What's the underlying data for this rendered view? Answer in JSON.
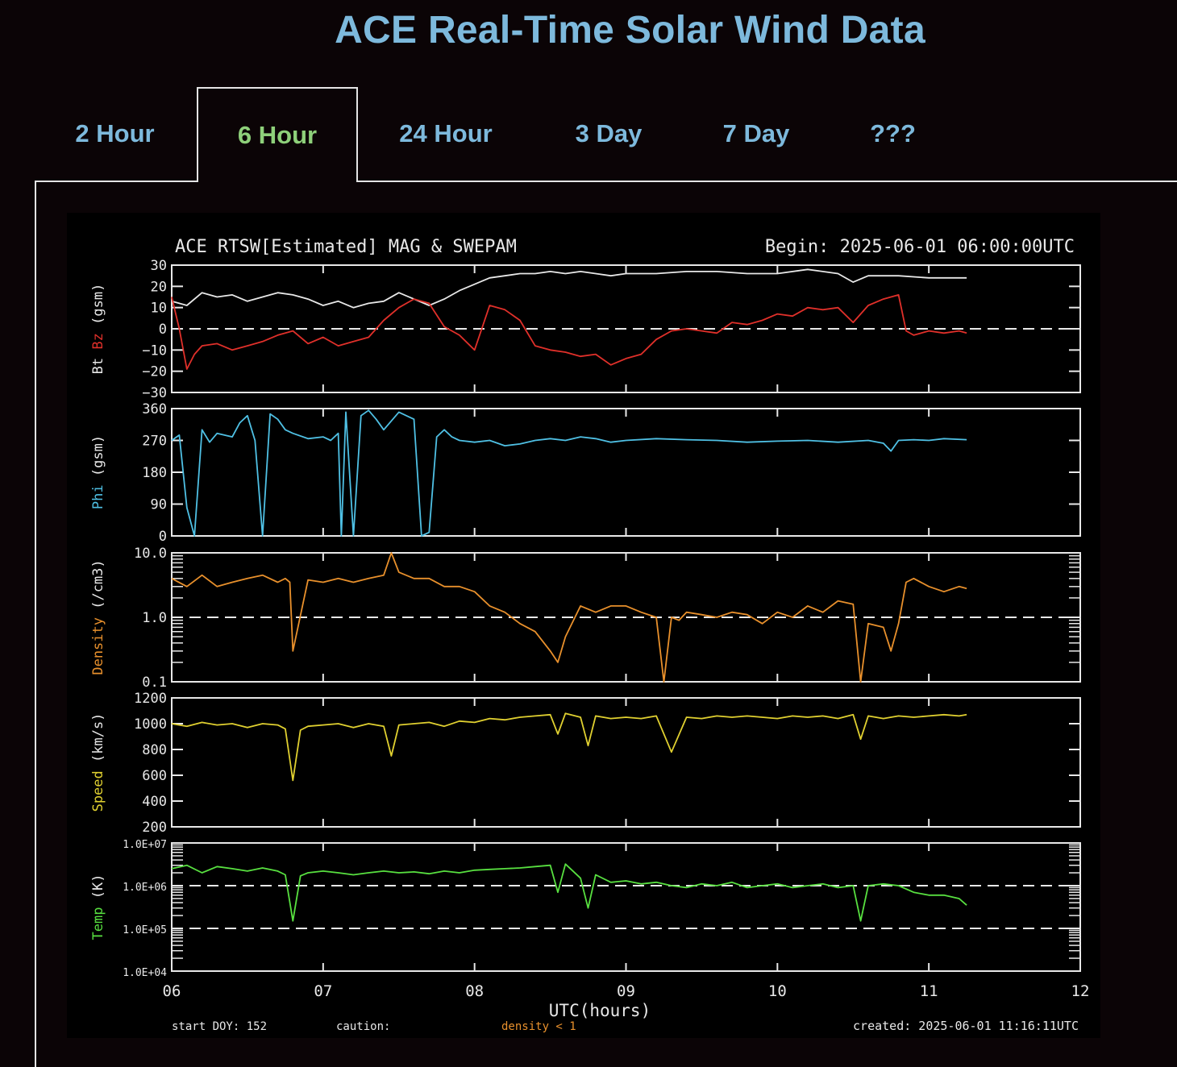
{
  "page": {
    "title": "ACE Real-Time Solar Wind Data"
  },
  "tabs": [
    {
      "label": "2 Hour",
      "active": false
    },
    {
      "label": "6 Hour",
      "active": true
    },
    {
      "label": "24 Hour",
      "active": false
    },
    {
      "label": "3 Day",
      "active": false
    },
    {
      "label": "7 Day",
      "active": false
    },
    {
      "label": "???",
      "active": false
    }
  ],
  "colors": {
    "page_bg": "#0b0406",
    "title": "#7db9dc",
    "tab_active": "#8ed07a",
    "bt": "#e8e8e8",
    "bz": "#e0302a",
    "phi": "#4fc0e4",
    "density": "#e8902c",
    "speed": "#e0d030",
    "temp": "#58e040"
  },
  "chart_data": {
    "type": "line",
    "title": "ACE RTSW[Estimated] MAG & SWEPAM",
    "begin_label": "Begin: 2025-06-01 06:00:00UTC",
    "xlabel": "UTC(hours)",
    "xlim": [
      6,
      12
    ],
    "xticks": [
      "06",
      "07",
      "08",
      "09",
      "10",
      "11",
      "12"
    ],
    "footer": {
      "start": "start DOY: 152",
      "caution": "caution:",
      "density_note": "density < 1",
      "created": "created: 2025-06-01 11:16:11UTC"
    },
    "panels": [
      {
        "id": "mag",
        "ylabel_parts": [
          {
            "text": "Bt",
            "color": "bt"
          },
          {
            "text": "Bz",
            "color": "bz"
          },
          {
            "text": "(gsm)",
            "color": "bt"
          }
        ],
        "scale": "linear",
        "ylim": [
          -30,
          30
        ],
        "ytick_labels": [
          "30",
          "20",
          "10",
          "0",
          "−10",
          "−20",
          "−30"
        ],
        "dashed": [
          0
        ],
        "series": [
          {
            "name": "Bt",
            "color": "bt",
            "x": [
              6.0,
              6.1,
              6.2,
              6.3,
              6.4,
              6.5,
              6.6,
              6.7,
              6.8,
              6.9,
              7.0,
              7.1,
              7.2,
              7.3,
              7.4,
              7.5,
              7.6,
              7.7,
              7.8,
              7.9,
              8.0,
              8.1,
              8.2,
              8.3,
              8.4,
              8.5,
              8.6,
              8.7,
              8.8,
              8.9,
              9.0,
              9.2,
              9.4,
              9.6,
              9.8,
              10.0,
              10.2,
              10.4,
              10.5,
              10.6,
              10.8,
              11.0,
              11.2,
              11.25
            ],
            "y": [
              13,
              11,
              17,
              15,
              16,
              13,
              15,
              17,
              16,
              14,
              11,
              13,
              10,
              12,
              13,
              17,
              14,
              11,
              14,
              18,
              21,
              24,
              25,
              26,
              26,
              27,
              26,
              27,
              26,
              25,
              26,
              26,
              27,
              27,
              26,
              26,
              28,
              26,
              22,
              25,
              25,
              24,
              24,
              24
            ]
          },
          {
            "name": "Bz",
            "color": "bz",
            "x": [
              6.0,
              6.05,
              6.1,
              6.15,
              6.2,
              6.3,
              6.4,
              6.5,
              6.6,
              6.7,
              6.8,
              6.9,
              7.0,
              7.1,
              7.2,
              7.3,
              7.4,
              7.5,
              7.6,
              7.7,
              7.8,
              7.9,
              8.0,
              8.1,
              8.2,
              8.3,
              8.4,
              8.5,
              8.6,
              8.7,
              8.8,
              8.9,
              9.0,
              9.1,
              9.2,
              9.3,
              9.4,
              9.5,
              9.6,
              9.7,
              9.8,
              9.9,
              10.0,
              10.1,
              10.2,
              10.3,
              10.4,
              10.5,
              10.6,
              10.7,
              10.8,
              10.85,
              10.9,
              11.0,
              11.1,
              11.2,
              11.25
            ],
            "y": [
              15,
              0,
              -19,
              -12,
              -8,
              -7,
              -10,
              -8,
              -6,
              -3,
              -1,
              -7,
              -4,
              -8,
              -6,
              -4,
              4,
              10,
              14,
              12,
              1,
              -3,
              -10,
              11,
              9,
              4,
              -8,
              -10,
              -11,
              -13,
              -12,
              -17,
              -14,
              -12,
              -5,
              -1,
              0,
              -1,
              -2,
              3,
              2,
              4,
              7,
              6,
              10,
              9,
              10,
              3,
              11,
              14,
              16,
              -1,
              -3,
              -1,
              -2,
              -1,
              -2
            ]
          }
        ]
      },
      {
        "id": "phi",
        "ylabel_parts": [
          {
            "text": "Phi",
            "color": "phi"
          },
          {
            "text": "(gsm)",
            "color": "bt"
          }
        ],
        "scale": "linear",
        "ylim": [
          0,
          360
        ],
        "ytick_labels": [
          "360",
          "270",
          "180",
          "90",
          "0"
        ],
        "ytick_values": [
          360,
          270,
          180,
          90,
          0
        ],
        "dashed": [],
        "series": [
          {
            "name": "Phi",
            "color": "phi",
            "x": [
              6.0,
              6.05,
              6.1,
              6.15,
              6.2,
              6.25,
              6.3,
              6.4,
              6.45,
              6.5,
              6.55,
              6.6,
              6.65,
              6.7,
              6.75,
              6.8,
              6.9,
              7.0,
              7.05,
              7.1,
              7.12,
              7.15,
              7.2,
              7.25,
              7.3,
              7.35,
              7.4,
              7.5,
              7.55,
              7.6,
              7.65,
              7.7,
              7.75,
              7.8,
              7.85,
              7.9,
              8.0,
              8.1,
              8.2,
              8.3,
              8.4,
              8.5,
              8.6,
              8.7,
              8.8,
              8.9,
              9.0,
              9.2,
              9.4,
              9.6,
              9.8,
              10.0,
              10.2,
              10.4,
              10.6,
              10.7,
              10.75,
              10.8,
              10.9,
              11.0,
              11.1,
              11.25
            ],
            "y": [
              270,
              285,
              80,
              0,
              300,
              265,
              290,
              280,
              320,
              340,
              270,
              0,
              345,
              330,
              300,
              290,
              275,
              280,
              270,
              290,
              0,
              350,
              0,
              340,
              355,
              330,
              300,
              350,
              340,
              330,
              0,
              10,
              280,
              300,
              280,
              270,
              265,
              270,
              255,
              260,
              270,
              275,
              270,
              280,
              275,
              265,
              270,
              275,
              272,
              270,
              265,
              268,
              270,
              265,
              270,
              262,
              240,
              270,
              272,
              270,
              275,
              272
            ]
          }
        ]
      },
      {
        "id": "density",
        "ylabel_parts": [
          {
            "text": "Density",
            "color": "density"
          },
          {
            "text": "(/cm3)",
            "color": "bt"
          }
        ],
        "scale": "log",
        "ylim": [
          0.1,
          10
        ],
        "ytick_labels": [
          "10.0",
          "1.0",
          "0.1"
        ],
        "ytick_values": [
          10,
          1,
          0.1
        ],
        "dashed": [
          1
        ],
        "series": [
          {
            "name": "Density",
            "color": "density",
            "x": [
              6.0,
              6.1,
              6.2,
              6.3,
              6.4,
              6.5,
              6.6,
              6.7,
              6.75,
              6.78,
              6.8,
              6.9,
              7.0,
              7.1,
              7.2,
              7.3,
              7.4,
              7.45,
              7.5,
              7.6,
              7.7,
              7.8,
              7.9,
              8.0,
              8.1,
              8.2,
              8.3,
              8.4,
              8.5,
              8.55,
              8.6,
              8.7,
              8.8,
              8.9,
              9.0,
              9.1,
              9.2,
              9.25,
              9.3,
              9.35,
              9.4,
              9.5,
              9.6,
              9.7,
              9.8,
              9.9,
              10.0,
              10.1,
              10.2,
              10.3,
              10.4,
              10.5,
              10.55,
              10.6,
              10.7,
              10.75,
              10.8,
              10.85,
              10.9,
              11.0,
              11.1,
              11.2,
              11.25
            ],
            "y": [
              4,
              3,
              4.5,
              3,
              3.5,
              4,
              4.5,
              3.5,
              4,
              3.5,
              0.3,
              3.8,
              3.5,
              4,
              3.5,
              4,
              4.5,
              10,
              5,
              4,
              4,
              3,
              3,
              2.5,
              1.5,
              1.2,
              0.8,
              0.6,
              0.3,
              0.2,
              0.5,
              1.5,
              1.2,
              1.5,
              1.5,
              1.2,
              1.0,
              0.1,
              1.0,
              0.9,
              1.2,
              1.1,
              1.0,
              1.2,
              1.1,
              0.8,
              1.2,
              1.0,
              1.5,
              1.2,
              1.8,
              1.6,
              0.1,
              0.8,
              0.7,
              0.3,
              0.8,
              3.5,
              4,
              3,
              2.5,
              3,
              2.8
            ]
          }
        ]
      },
      {
        "id": "speed",
        "ylabel_parts": [
          {
            "text": "Speed",
            "color": "speed"
          },
          {
            "text": "(km/s)",
            "color": "bt"
          }
        ],
        "scale": "linear",
        "ylim": [
          200,
          1200
        ],
        "ytick_labels": [
          "1200",
          "1000",
          "800",
          "600",
          "400",
          "200"
        ],
        "ytick_values": [
          1200,
          1000,
          800,
          600,
          400,
          200
        ],
        "dashed": [],
        "series": [
          {
            "name": "Speed",
            "color": "speed",
            "x": [
              6.0,
              6.1,
              6.2,
              6.3,
              6.4,
              6.5,
              6.6,
              6.7,
              6.75,
              6.8,
              6.85,
              6.9,
              7.0,
              7.1,
              7.2,
              7.3,
              7.4,
              7.45,
              7.5,
              7.6,
              7.7,
              7.8,
              7.9,
              8.0,
              8.1,
              8.2,
              8.3,
              8.4,
              8.5,
              8.55,
              8.6,
              8.7,
              8.75,
              8.8,
              8.9,
              9.0,
              9.1,
              9.2,
              9.3,
              9.4,
              9.5,
              9.6,
              9.7,
              9.8,
              9.9,
              10.0,
              10.1,
              10.2,
              10.3,
              10.4,
              10.5,
              10.55,
              10.6,
              10.7,
              10.8,
              10.9,
              11.0,
              11.1,
              11.2,
              11.25
            ],
            "y": [
              1000,
              980,
              1010,
              990,
              1000,
              970,
              1000,
              990,
              960,
              560,
              950,
              980,
              990,
              1000,
              970,
              1000,
              980,
              750,
              990,
              1000,
              1010,
              980,
              1020,
              1010,
              1040,
              1030,
              1050,
              1060,
              1070,
              920,
              1080,
              1050,
              830,
              1060,
              1040,
              1050,
              1040,
              1060,
              780,
              1050,
              1040,
              1060,
              1050,
              1060,
              1050,
              1040,
              1060,
              1050,
              1060,
              1040,
              1070,
              880,
              1060,
              1040,
              1060,
              1050,
              1060,
              1070,
              1060,
              1070
            ]
          }
        ]
      },
      {
        "id": "temp",
        "ylabel_parts": [
          {
            "text": "Temp",
            "color": "temp"
          },
          {
            "text": "(K)",
            "color": "bt"
          }
        ],
        "scale": "log",
        "ylim": [
          10000,
          10000000
        ],
        "ytick_labels": [
          "1.0E+07",
          "1.0E+06",
          "1.0E+05",
          "1.0E+04"
        ],
        "ytick_values": [
          10000000,
          1000000,
          100000,
          10000
        ],
        "dashed": [
          1000000,
          100000
        ],
        "series": [
          {
            "name": "Temp",
            "color": "temp",
            "x": [
              6.0,
              6.1,
              6.2,
              6.3,
              6.4,
              6.5,
              6.6,
              6.7,
              6.75,
              6.8,
              6.85,
              6.9,
              7.0,
              7.1,
              7.2,
              7.3,
              7.4,
              7.5,
              7.6,
              7.7,
              7.8,
              7.9,
              8.0,
              8.1,
              8.2,
              8.3,
              8.4,
              8.5,
              8.55,
              8.6,
              8.7,
              8.75,
              8.8,
              8.9,
              9.0,
              9.1,
              9.2,
              9.3,
              9.4,
              9.5,
              9.6,
              9.7,
              9.8,
              9.9,
              10.0,
              10.1,
              10.2,
              10.3,
              10.4,
              10.5,
              10.55,
              10.6,
              10.7,
              10.8,
              10.9,
              11.0,
              11.1,
              11.2,
              11.25
            ],
            "y": [
              2500000,
              3000000,
              2000000,
              2800000,
              2500000,
              2200000,
              2600000,
              2200000,
              1800000,
              150000,
              1700000,
              2000000,
              2200000,
              2000000,
              1800000,
              2000000,
              2200000,
              2000000,
              2100000,
              1900000,
              2200000,
              2000000,
              2300000,
              2400000,
              2500000,
              2600000,
              2800000,
              3000000,
              700000,
              3200000,
              1500000,
              300000,
              1800000,
              1200000,
              1300000,
              1100000,
              1200000,
              1000000,
              900000,
              1100000,
              1000000,
              1200000,
              900000,
              1000000,
              1100000,
              900000,
              1000000,
              1100000,
              900000,
              1000000,
              150000,
              1000000,
              1100000,
              1000000,
              700000,
              600000,
              600000,
              500000,
              350000
            ]
          }
        ]
      }
    ]
  }
}
